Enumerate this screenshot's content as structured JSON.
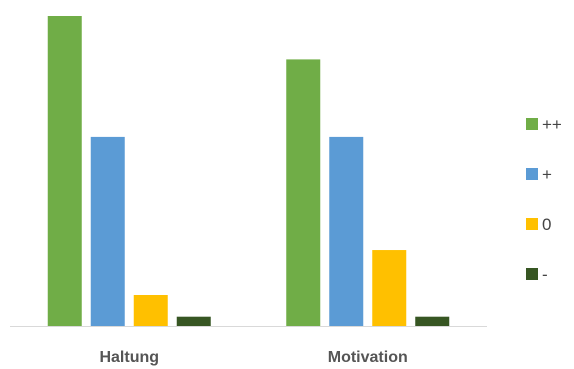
{
  "chart_data": {
    "type": "bar",
    "categories": [
      "Haltung",
      "Motivation"
    ],
    "series": [
      {
        "name": "++",
        "color": "#70AD47",
        "values": [
          100,
          86
        ]
      },
      {
        "name": "+",
        "color": "#5B9BD5",
        "values": [
          61,
          61
        ]
      },
      {
        "name": "0",
        "color": "#FFC000",
        "values": [
          10,
          24.5
        ]
      },
      {
        "name": "-",
        "color": "#375623",
        "values": [
          3,
          3
        ]
      }
    ],
    "ylim": [
      0,
      100
    ],
    "grid": false,
    "legend": "right",
    "title": "",
    "xlabel": "",
    "ylabel": ""
  }
}
